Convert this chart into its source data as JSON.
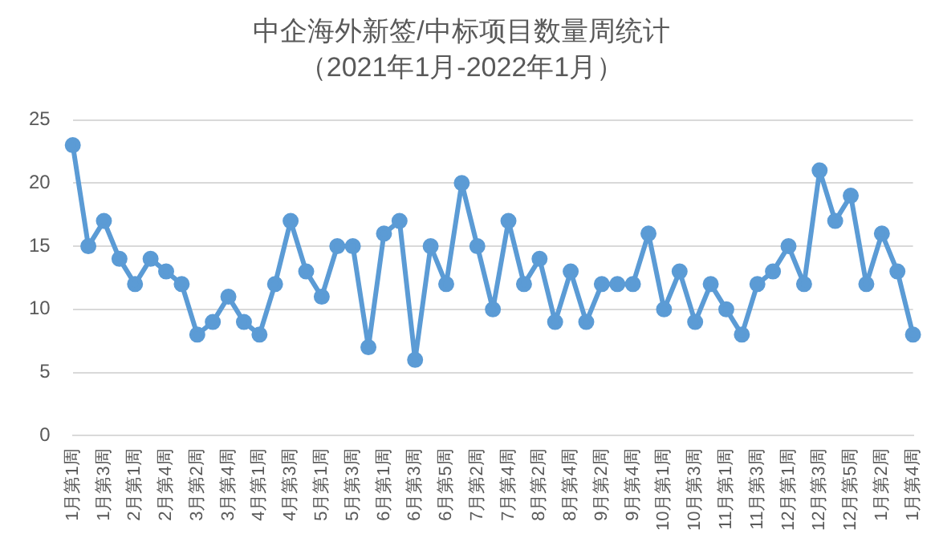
{
  "chart_data": {
    "type": "line",
    "title": "中企海外新签/中标项目数量周统计",
    "subtitle": "（2021年1月-2022年1月）",
    "categories": [
      "1月第1周",
      null,
      "1月第3周",
      null,
      "2月第1周",
      null,
      "2月第4周",
      null,
      "3月第2周",
      null,
      "3月第4周",
      null,
      "4月第1周",
      null,
      "4月第3周",
      null,
      "5月第1周",
      null,
      "5月第3周",
      null,
      "6月第1周",
      null,
      "6月第3周",
      null,
      "6月第5周",
      null,
      "7月第2周",
      null,
      "7月第4周",
      null,
      "8月第2周",
      null,
      "8月第4周",
      null,
      "9月第2周",
      null,
      "9月第4周",
      null,
      "10月第1周",
      null,
      "10月第3周",
      null,
      "11月第1周",
      null,
      "11月第3周",
      null,
      "12月第1周",
      null,
      "12月第3周",
      null,
      "12月第5周",
      null,
      "1月第2周",
      null,
      "1月第4周"
    ],
    "values": [
      23,
      15,
      17,
      14,
      12,
      14,
      13,
      12,
      8,
      9,
      11,
      9,
      8,
      12,
      17,
      13,
      11,
      15,
      15,
      7,
      16,
      17,
      6,
      15,
      12,
      20,
      15,
      10,
      17,
      12,
      14,
      9,
      13,
      9,
      12,
      12,
      12,
      16,
      10,
      13,
      9,
      12,
      10,
      8,
      12,
      13,
      15,
      12,
      21,
      17,
      19,
      12,
      16,
      13,
      8
    ],
    "color": "#5b9bd5",
    "marker": "circle",
    "ylim": [
      0,
      25
    ],
    "yticks": [
      0,
      5,
      10,
      15,
      20,
      25
    ],
    "grid": "y",
    "legend": false
  }
}
